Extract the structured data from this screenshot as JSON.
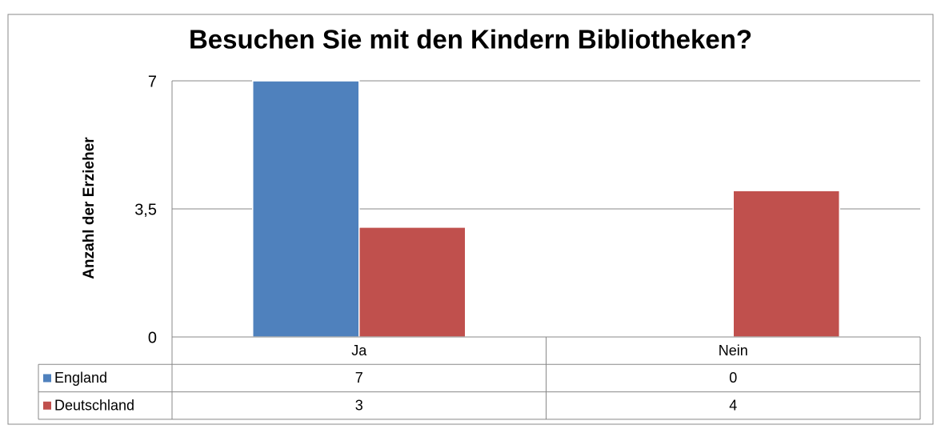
{
  "chart_data": {
    "type": "bar",
    "title": "Besuchen Sie mit den Kindern Bibliotheken?",
    "y_label": "Anzahl der Erzieher",
    "categories": [
      "Ja",
      "Nein"
    ],
    "series": [
      {
        "name": "England",
        "color": "#4f81bd",
        "values": [
          7,
          0
        ]
      },
      {
        "name": "Deutschland",
        "color": "#c0504d",
        "values": [
          3,
          4
        ]
      }
    ],
    "ylim": [
      0,
      7
    ],
    "yticks": [
      0,
      {
        "value": 3.5,
        "label": "3,5"
      },
      7
    ],
    "grid": true,
    "legend": "table"
  }
}
